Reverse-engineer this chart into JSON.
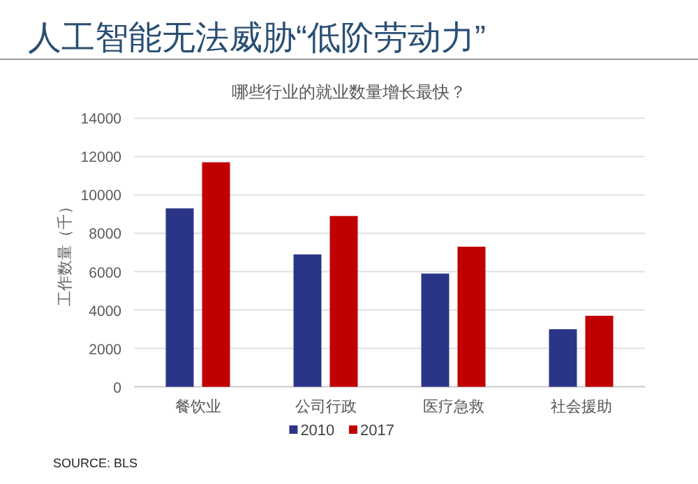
{
  "chart_data": {
    "type": "bar",
    "title": "人工智能无法威胁“低阶劳动力”",
    "subtitle": "哪些行业的就业数量增长最快？",
    "ylabel": "工作数量（千）",
    "categories": [
      "餐饮业",
      "公司行政",
      "医疗急救",
      "社会援助"
    ],
    "series": [
      {
        "name": "2010",
        "color": "#2b3588",
        "values": [
          9300,
          6900,
          5900,
          3000
        ]
      },
      {
        "name": "2017",
        "color": "#c00000",
        "values": [
          11700,
          8900,
          7300,
          3700
        ]
      }
    ],
    "ylim": [
      0,
      14000
    ],
    "yticks": [
      0,
      2000,
      4000,
      6000,
      8000,
      10000,
      12000,
      14000
    ],
    "grid": "y",
    "legend": "bottom",
    "annotations": [
      "SOURCE: BLS"
    ]
  }
}
